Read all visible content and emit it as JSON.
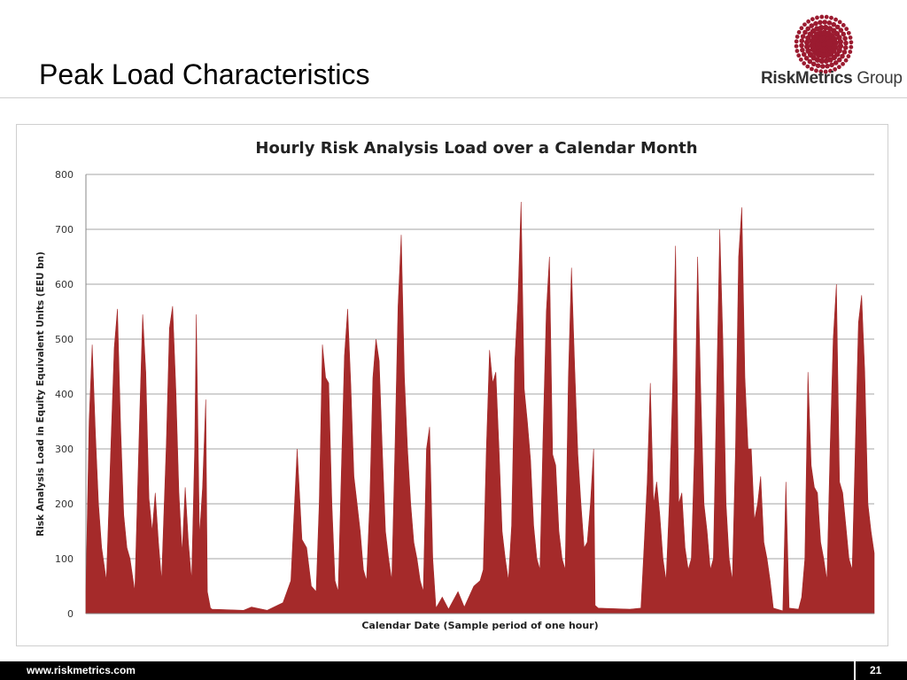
{
  "slide": {
    "title": "Peak Load Characteristics"
  },
  "logo": {
    "brand_bold": "RiskMetrics",
    "brand_light": "Group",
    "icon": "dotted-sunburst-icon"
  },
  "footer": {
    "url": "www.riskmetrics.com",
    "page": "21"
  },
  "colors": {
    "series": "#a52a2a",
    "grid": "#a6a6a6",
    "dot": "#9b1b30"
  },
  "chart_data": {
    "type": "area",
    "title": "Hourly Risk Analysis Load over a Calendar Month",
    "xlabel": "Calendar Date (Sample period of one hour)",
    "ylabel": "Risk Analysis Load in Equity Equivalent Units (EEU bn)",
    "ylim": [
      0,
      800
    ],
    "yticks": [
      "0",
      "100",
      "200",
      "300",
      "400",
      "500",
      "600",
      "700",
      "800"
    ],
    "grid": true,
    "legend": "none",
    "sample_period": "hour",
    "series": [
      {
        "profile": [
          [
            0,
            40
          ],
          [
            2,
            350
          ],
          [
            4,
            490
          ],
          [
            6,
            330
          ],
          [
            8,
            200
          ],
          [
            10,
            120
          ],
          [
            13,
            60
          ],
          [
            16,
            320
          ],
          [
            18,
            485
          ],
          [
            20,
            555
          ],
          [
            22,
            340
          ],
          [
            24,
            180
          ],
          [
            26,
            120
          ],
          [
            28,
            100
          ],
          [
            31,
            40
          ],
          [
            34,
            350
          ],
          [
            36,
            545
          ],
          [
            38,
            440
          ],
          [
            40,
            210
          ],
          [
            42,
            150
          ],
          [
            44,
            220
          ],
          [
            46,
            130
          ],
          [
            48,
            60
          ],
          [
            51,
            310
          ],
          [
            53,
            520
          ],
          [
            55,
            560
          ],
          [
            57,
            410
          ],
          [
            59,
            220
          ],
          [
            61,
            110
          ],
          [
            63,
            230
          ],
          [
            65,
            130
          ],
          [
            67,
            60
          ],
          [
            69,
            300
          ],
          [
            70,
            545
          ],
          [
            72,
            140
          ],
          [
            74,
            230
          ],
          [
            76,
            390
          ],
          [
            77,
            40
          ],
          [
            79,
            10
          ],
          [
            80,
            8
          ],
          [
            100,
            6
          ],
          [
            105,
            12
          ],
          [
            115,
            6
          ],
          [
            125,
            20
          ],
          [
            130,
            60
          ],
          [
            134,
            300
          ],
          [
            137,
            135
          ],
          [
            140,
            120
          ],
          [
            143,
            50
          ],
          [
            146,
            40
          ],
          [
            148,
            200
          ],
          [
            150,
            490
          ],
          [
            152,
            430
          ],
          [
            154,
            420
          ],
          [
            156,
            200
          ],
          [
            158,
            60
          ],
          [
            160,
            40
          ],
          [
            162,
            260
          ],
          [
            164,
            470
          ],
          [
            166,
            555
          ],
          [
            168,
            420
          ],
          [
            170,
            250
          ],
          [
            172,
            200
          ],
          [
            174,
            150
          ],
          [
            176,
            80
          ],
          [
            178,
            60
          ],
          [
            180,
            200
          ],
          [
            182,
            430
          ],
          [
            184,
            500
          ],
          [
            186,
            460
          ],
          [
            188,
            300
          ],
          [
            190,
            150
          ],
          [
            192,
            100
          ],
          [
            194,
            60
          ],
          [
            196,
            300
          ],
          [
            198,
            560
          ],
          [
            200,
            690
          ],
          [
            202,
            430
          ],
          [
            204,
            300
          ],
          [
            206,
            200
          ],
          [
            208,
            130
          ],
          [
            210,
            100
          ],
          [
            212,
            60
          ],
          [
            214,
            40
          ],
          [
            216,
            300
          ],
          [
            218,
            340
          ],
          [
            220,
            100
          ],
          [
            222,
            10
          ],
          [
            226,
            30
          ],
          [
            230,
            8
          ],
          [
            236,
            40
          ],
          [
            240,
            12
          ],
          [
            246,
            50
          ],
          [
            250,
            60
          ],
          [
            252,
            80
          ],
          [
            254,
            300
          ],
          [
            256,
            480
          ],
          [
            258,
            420
          ],
          [
            260,
            440
          ],
          [
            262,
            300
          ],
          [
            264,
            150
          ],
          [
            266,
            100
          ],
          [
            268,
            60
          ],
          [
            270,
            160
          ],
          [
            272,
            460
          ],
          [
            274,
            570
          ],
          [
            276,
            750
          ],
          [
            278,
            410
          ],
          [
            280,
            350
          ],
          [
            282,
            280
          ],
          [
            284,
            160
          ],
          [
            286,
            100
          ],
          [
            288,
            80
          ],
          [
            290,
            330
          ],
          [
            292,
            550
          ],
          [
            294,
            650
          ],
          [
            296,
            290
          ],
          [
            298,
            270
          ],
          [
            300,
            150
          ],
          [
            302,
            100
          ],
          [
            304,
            80
          ],
          [
            306,
            430
          ],
          [
            308,
            630
          ],
          [
            310,
            450
          ],
          [
            312,
            290
          ],
          [
            314,
            200
          ],
          [
            316,
            120
          ],
          [
            318,
            130
          ],
          [
            320,
            200
          ],
          [
            322,
            300
          ],
          [
            323,
            15
          ],
          [
            325,
            10
          ],
          [
            345,
            8
          ],
          [
            352,
            10
          ],
          [
            354,
            120
          ],
          [
            356,
            240
          ],
          [
            358,
            420
          ],
          [
            360,
            200
          ],
          [
            362,
            240
          ],
          [
            364,
            180
          ],
          [
            366,
            100
          ],
          [
            368,
            60
          ],
          [
            370,
            200
          ],
          [
            372,
            400
          ],
          [
            374,
            670
          ],
          [
            376,
            200
          ],
          [
            378,
            220
          ],
          [
            380,
            120
          ],
          [
            382,
            80
          ],
          [
            384,
            100
          ],
          [
            386,
            300
          ],
          [
            388,
            650
          ],
          [
            390,
            400
          ],
          [
            392,
            200
          ],
          [
            394,
            150
          ],
          [
            396,
            80
          ],
          [
            398,
            100
          ],
          [
            400,
            400
          ],
          [
            402,
            700
          ],
          [
            404,
            500
          ],
          [
            406,
            200
          ],
          [
            408,
            100
          ],
          [
            410,
            60
          ],
          [
            412,
            300
          ],
          [
            414,
            650
          ],
          [
            416,
            740
          ],
          [
            418,
            430
          ],
          [
            420,
            300
          ],
          [
            422,
            300
          ],
          [
            424,
            170
          ],
          [
            426,
            200
          ],
          [
            428,
            250
          ],
          [
            430,
            130
          ],
          [
            432,
            100
          ],
          [
            434,
            60
          ],
          [
            436,
            10
          ],
          [
            442,
            5
          ],
          [
            444,
            240
          ],
          [
            446,
            10
          ],
          [
            452,
            8
          ],
          [
            454,
            30
          ],
          [
            456,
            100
          ],
          [
            458,
            440
          ],
          [
            460,
            270
          ],
          [
            462,
            230
          ],
          [
            464,
            220
          ],
          [
            466,
            130
          ],
          [
            468,
            100
          ],
          [
            470,
            60
          ],
          [
            472,
            300
          ],
          [
            474,
            500
          ],
          [
            476,
            600
          ],
          [
            478,
            240
          ],
          [
            480,
            220
          ],
          [
            482,
            160
          ],
          [
            484,
            100
          ],
          [
            486,
            80
          ],
          [
            488,
            300
          ],
          [
            490,
            530
          ],
          [
            492,
            580
          ],
          [
            494,
            440
          ],
          [
            496,
            200
          ],
          [
            498,
            150
          ],
          [
            500,
            110
          ]
        ]
      }
    ]
  }
}
